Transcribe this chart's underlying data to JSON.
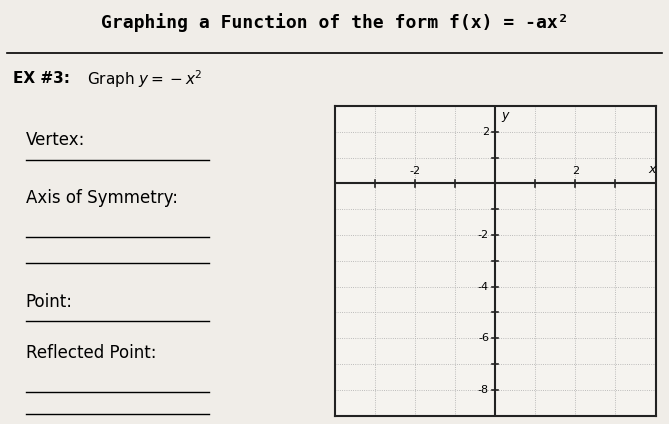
{
  "title_main": "Graphing a Function of the form f(x) = -ax²",
  "subtitle": "EX #3:  Graph y = -x²",
  "label_vertex": "Vertex:",
  "label_aos": "Axis of Symmetry:",
  "label_point": "Point:",
  "label_reflected": "Reflected Point:",
  "bg_color": "#f0ede8",
  "grid_bg": "#f5f3ef",
  "title_bg": "#c8c8c8",
  "xmin": -4,
  "xmax": 4,
  "ymin": -9,
  "ymax": 3,
  "xtick_step": 1,
  "ytick_step": 1,
  "x_label_ticks": [
    -2,
    2
  ],
  "y_label_ticks": [
    2,
    -2,
    -4,
    -6,
    -8
  ],
  "axis_color": "#222222",
  "grid_color": "#aaaaaa",
  "border_color": "#222222"
}
